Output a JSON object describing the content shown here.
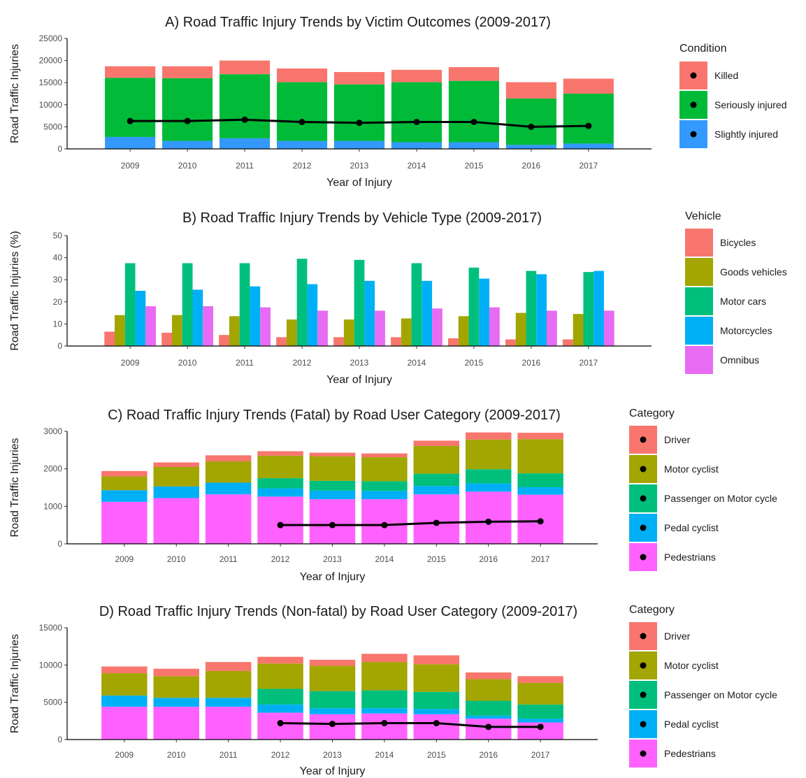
{
  "chart_data": [
    {
      "id": "A",
      "type": "bar",
      "stacked": true,
      "title": "A) Road Traffic Injury Trends by Victim Outcomes (2009-2017)",
      "xlabel": "Year of Injury",
      "ylabel": "Road Traffic Injuries",
      "ylim": [
        0,
        25000
      ],
      "yticks": [
        0,
        5000,
        10000,
        15000,
        20000,
        25000
      ],
      "categories": [
        "2009",
        "2010",
        "2011",
        "2012",
        "2013",
        "2014",
        "2015",
        "2016",
        "2017"
      ],
      "legend_title": "Condition",
      "legend_style": "point",
      "series": [
        {
          "name": "Slightly injured",
          "color": "#3399ff",
          "values": [
            2700,
            1800,
            2400,
            1800,
            1800,
            1500,
            1500,
            900,
            1200
          ]
        },
        {
          "name": "Seriously injured",
          "color": "#00ba38",
          "values": [
            13400,
            14200,
            14500,
            13300,
            12800,
            13600,
            13900,
            10500,
            11300
          ]
        },
        {
          "name": "Killed",
          "color": "#f8766d",
          "values": [
            2600,
            2700,
            3100,
            3100,
            2800,
            2800,
            3100,
            3700,
            3400
          ]
        }
      ],
      "legend_order": [
        "Killed",
        "Seriously injured",
        "Slightly injured"
      ],
      "trend_line": {
        "x": [
          "2009",
          "2010",
          "2011",
          "2012",
          "2013",
          "2014",
          "2015",
          "2016",
          "2017"
        ],
        "values": [
          6300,
          6300,
          6600,
          6100,
          5900,
          6100,
          6100,
          5000,
          5200
        ]
      }
    },
    {
      "id": "B",
      "type": "bar",
      "grouped": true,
      "title": "B) Road Traffic Injury Trends by Vehicle Type (2009-2017)",
      "xlabel": "Year of Injury",
      "ylabel": "Road Traffic Injuries (%)",
      "ylim": [
        0,
        50
      ],
      "yticks": [
        0,
        10,
        20,
        30,
        40,
        50
      ],
      "categories": [
        "2009",
        "2010",
        "2011",
        "2012",
        "2013",
        "2014",
        "2015",
        "2016",
        "2017"
      ],
      "legend_title": "Vehicle",
      "legend_style": "box",
      "series": [
        {
          "name": "Bicycles",
          "color": "#f8766d",
          "values": [
            6.5,
            6,
            5,
            4,
            4,
            4,
            3.5,
            3,
            3
          ]
        },
        {
          "name": "Goods vehicles",
          "color": "#a3a500",
          "values": [
            14,
            14,
            13.5,
            12,
            12,
            12.5,
            13.5,
            15,
            14.5
          ]
        },
        {
          "name": "Motor cars",
          "color": "#00bf7d",
          "values": [
            37.5,
            37.5,
            37.5,
            39.5,
            39,
            37.5,
            35.5,
            34,
            33.5
          ]
        },
        {
          "name": "Motorcycles",
          "color": "#00b0f6",
          "values": [
            25,
            25.5,
            27,
            28,
            29.5,
            29.5,
            30.5,
            32.5,
            34
          ]
        },
        {
          "name": "Omnibus",
          "color": "#e76bf3",
          "values": [
            18,
            18,
            17.5,
            16,
            16,
            17,
            17.5,
            16,
            16
          ]
        }
      ],
      "legend_order": [
        "Bicycles",
        "Goods vehicles",
        "Motor cars",
        "Motorcycles",
        "Omnibus"
      ]
    },
    {
      "id": "C",
      "type": "bar",
      "stacked": true,
      "title": "C) Road Traffic Injury Trends (Fatal) by Road User Category (2009-2017)",
      "xlabel": "Year of Injury",
      "ylabel": "Road Traffic Injuries",
      "ylim": [
        0,
        3000
      ],
      "yticks": [
        0,
        1000,
        2000,
        3000
      ],
      "categories": [
        "2009",
        "2010",
        "2011",
        "2012",
        "2013",
        "2014",
        "2015",
        "2016",
        "2017"
      ],
      "legend_title": "Category",
      "legend_style": "point",
      "series": [
        {
          "name": "Pedestrians",
          "color": "#ff61ff",
          "values": [
            1120,
            1220,
            1320,
            1260,
            1190,
            1190,
            1320,
            1390,
            1310
          ]
        },
        {
          "name": "Pedal cyclist",
          "color": "#00b0f6",
          "values": [
            310,
            310,
            310,
            220,
            230,
            220,
            220,
            220,
            200
          ]
        },
        {
          "name": "Passenger on Motor cycle",
          "color": "#00bf7d",
          "values": [
            0,
            0,
            0,
            270,
            260,
            260,
            330,
            380,
            370
          ]
        },
        {
          "name": "Motor cyclist",
          "color": "#a3a500",
          "values": [
            370,
            520,
            570,
            600,
            650,
            640,
            740,
            790,
            910
          ]
        },
        {
          "name": "Driver",
          "color": "#f8766d",
          "values": [
            140,
            120,
            160,
            120,
            100,
            100,
            140,
            190,
            170
          ]
        }
      ],
      "legend_order": [
        "Driver",
        "Motor cyclist",
        "Passenger on Motor cycle",
        "Pedal cyclist",
        "Pedestrians"
      ],
      "trend_line": {
        "x": [
          "2012",
          "2013",
          "2014",
          "2015",
          "2016",
          "2017"
        ],
        "values": [
          500,
          500,
          500,
          560,
          590,
          600
        ]
      }
    },
    {
      "id": "D",
      "type": "bar",
      "stacked": true,
      "title": "D) Road Traffic Injury Trends (Non-fatal) by Road User Category (2009-2017)",
      "xlabel": "Year of Injury",
      "ylabel": "Road Traffic Injuries",
      "ylim": [
        0,
        15000
      ],
      "yticks": [
        0,
        5000,
        10000,
        15000
      ],
      "categories": [
        "2009",
        "2010",
        "2011",
        "2012",
        "2013",
        "2014",
        "2015",
        "2016",
        "2017"
      ],
      "legend_title": "Category",
      "legend_style": "point",
      "series": [
        {
          "name": "Pedestrians",
          "color": "#ff61ff",
          "values": [
            4400,
            4400,
            4400,
            3600,
            3400,
            3500,
            3400,
            2800,
            2300
          ]
        },
        {
          "name": "Pedal cyclist",
          "color": "#00b0f6",
          "values": [
            1500,
            1200,
            1200,
            1100,
            800,
            700,
            700,
            400,
            500
          ]
        },
        {
          "name": "Passenger on Motor cycle",
          "color": "#00bf7d",
          "values": [
            0,
            0,
            0,
            2100,
            2300,
            2400,
            2300,
            2000,
            1900
          ]
        },
        {
          "name": "Motor cyclist",
          "color": "#a3a500",
          "values": [
            3000,
            2900,
            3600,
            3400,
            3400,
            3800,
            3700,
            2900,
            2900
          ]
        },
        {
          "name": "Driver",
          "color": "#f8766d",
          "values": [
            900,
            1000,
            1200,
            900,
            800,
            1100,
            1200,
            900,
            900
          ]
        }
      ],
      "legend_order": [
        "Driver",
        "Motor cyclist",
        "Passenger on Motor cycle",
        "Pedal cyclist",
        "Pedestrians"
      ],
      "trend_line": {
        "x": [
          "2012",
          "2013",
          "2014",
          "2015",
          "2016",
          "2017"
        ],
        "values": [
          2200,
          2100,
          2200,
          2200,
          1700,
          1700
        ]
      }
    }
  ]
}
